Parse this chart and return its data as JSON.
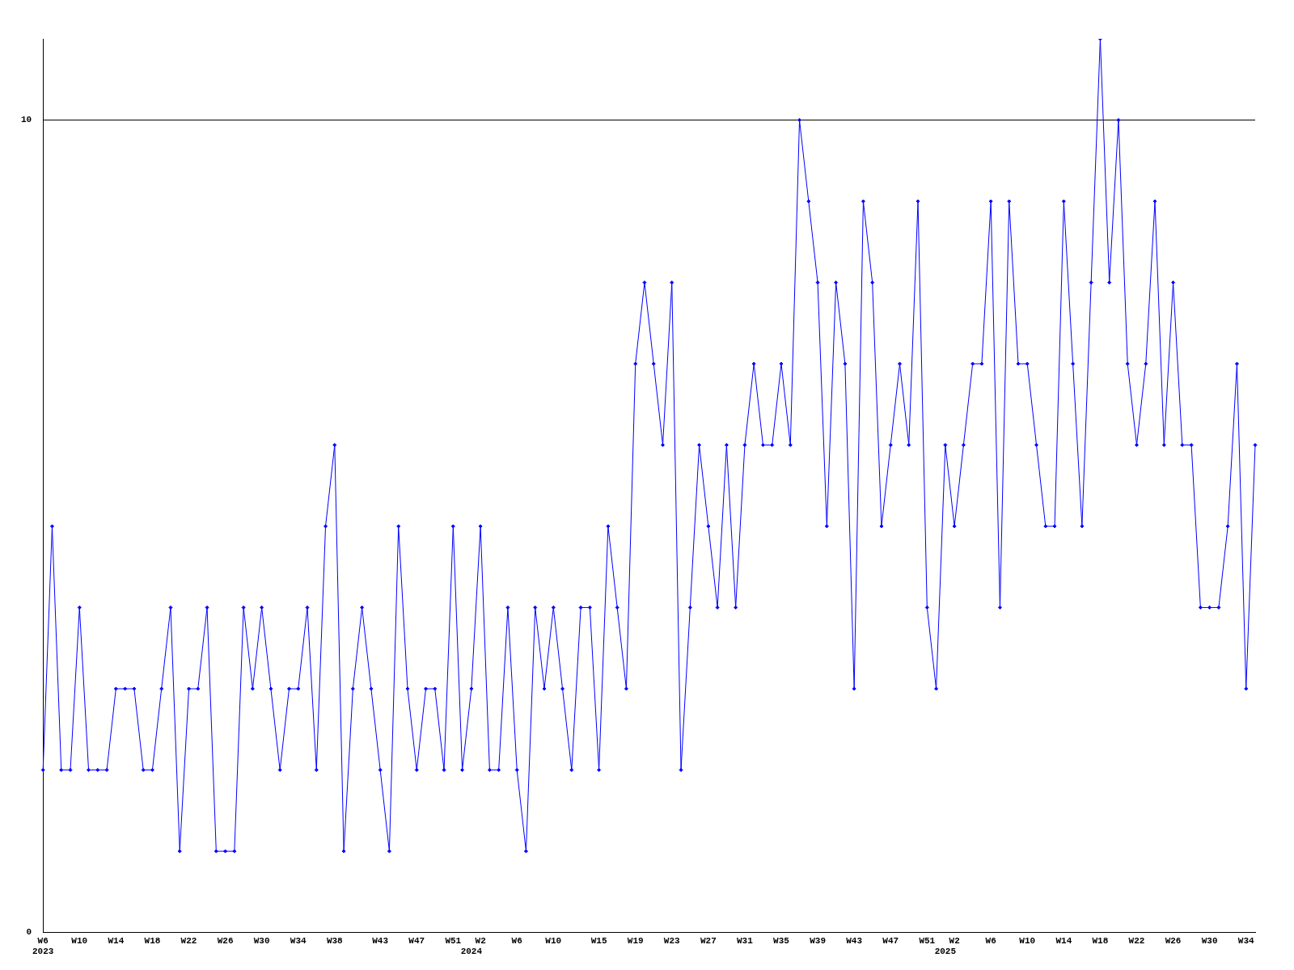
{
  "chart_data": {
    "type": "line",
    "categories": [
      "W6\n2023",
      null,
      null,
      null,
      "W10",
      null,
      null,
      null,
      "W14",
      null,
      null,
      null,
      "W18",
      null,
      null,
      null,
      "W22",
      null,
      null,
      null,
      "W26",
      null,
      null,
      null,
      "W30",
      null,
      null,
      null,
      "W34",
      null,
      null,
      null,
      "W38",
      null,
      null,
      null,
      null,
      "W43",
      null,
      null,
      null,
      "W47",
      null,
      null,
      null,
      "W51",
      null,
      "\n2024",
      "W2",
      null,
      null,
      null,
      "W6",
      null,
      null,
      null,
      "W10",
      null,
      null,
      null,
      null,
      "W15",
      null,
      null,
      null,
      "W19",
      null,
      null,
      null,
      "W23",
      null,
      null,
      null,
      "W27",
      null,
      null,
      null,
      "W31",
      null,
      null,
      null,
      "W35",
      null,
      null,
      null,
      "W39",
      null,
      null,
      null,
      "W43",
      null,
      null,
      null,
      "W47",
      null,
      null,
      null,
      "W51",
      null,
      "\n2025",
      "W2",
      null,
      null,
      null,
      "W6",
      null,
      null,
      null,
      "W10",
      null,
      null,
      null,
      "W14",
      null,
      null,
      null,
      "W18",
      null,
      null,
      null,
      "W22",
      null,
      null,
      null,
      "W26",
      null,
      null,
      null,
      "W30",
      null,
      null,
      null,
      "W34",
      null
    ],
    "series": [
      {
        "color": "#0000ff",
        "values": [
          2,
          5,
          2,
          2,
          4,
          2,
          2,
          2,
          3,
          3,
          3,
          2,
          2,
          3,
          4,
          1,
          3,
          3,
          4,
          1,
          1,
          1,
          4,
          3,
          4,
          3,
          2,
          3,
          3,
          4,
          2,
          5,
          6,
          1,
          3,
          4,
          3,
          2,
          1,
          5,
          3,
          2,
          3,
          3,
          2,
          5,
          2,
          3,
          5,
          2,
          2,
          4,
          2,
          1,
          4,
          3,
          4,
          3,
          2,
          4,
          4,
          2,
          5,
          4,
          3,
          7,
          8,
          7,
          6,
          8,
          2,
          4,
          6,
          5,
          4,
          6,
          4,
          6,
          7,
          6,
          6,
          7,
          6,
          10,
          9,
          8,
          5,
          8,
          7,
          3,
          9,
          8,
          5,
          6,
          7,
          6,
          9,
          4,
          3,
          6,
          5,
          6,
          7,
          7,
          9,
          4,
          9,
          7,
          7,
          6,
          5,
          5,
          9,
          7,
          5,
          8,
          11,
          8,
          10,
          7,
          6,
          7,
          9,
          6,
          8,
          6,
          6,
          4,
          4,
          4,
          5,
          7,
          3,
          6
        ]
      }
    ],
    "ylim": [
      0,
      11
    ],
    "yticks": [
      0,
      10
    ],
    "grid": "y",
    "legend": false,
    "marker": "diamond",
    "line_style": "solid"
  }
}
